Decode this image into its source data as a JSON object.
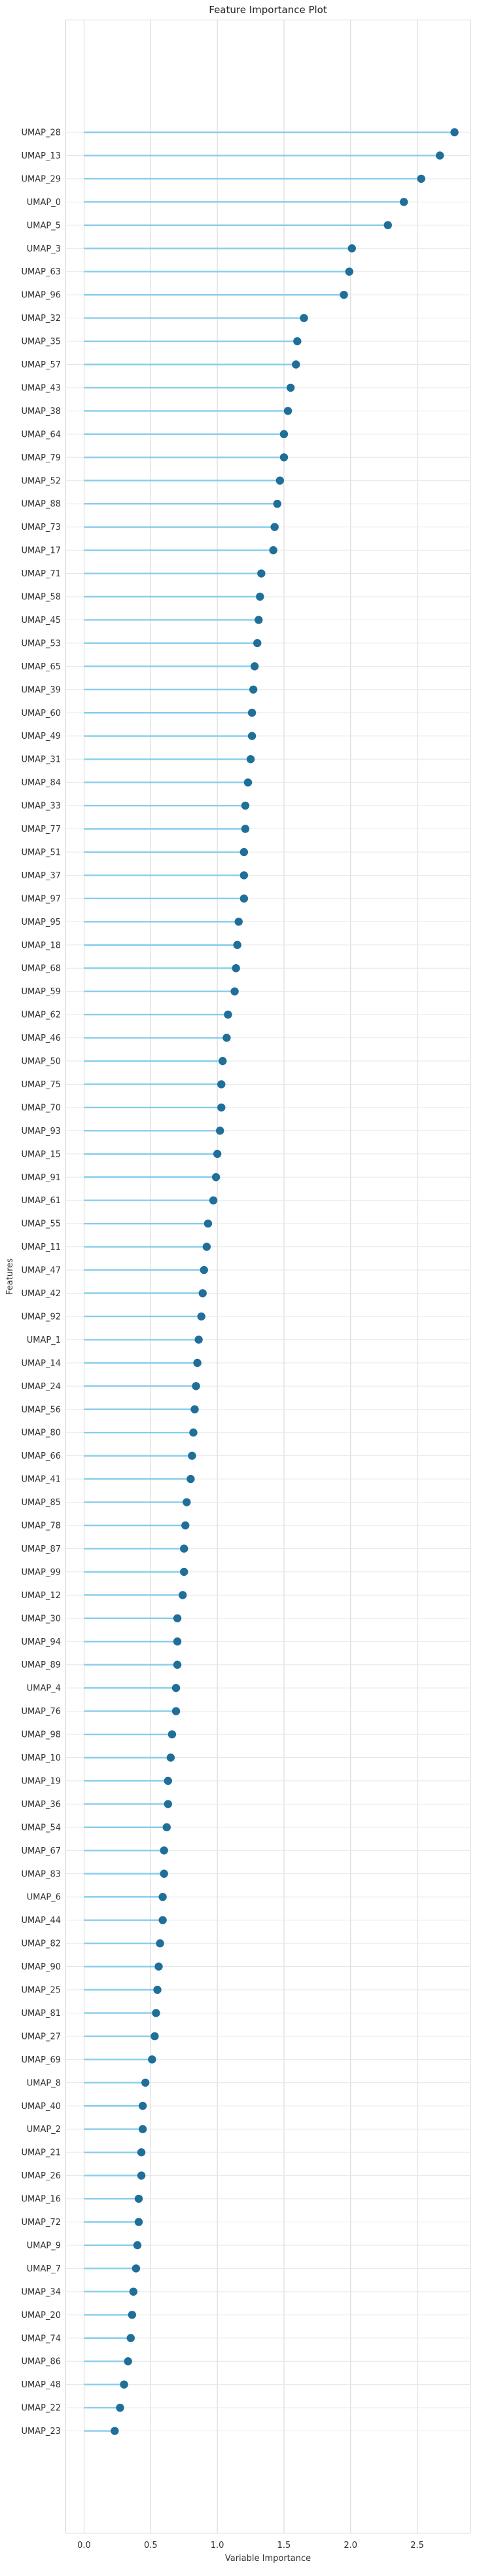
{
  "chart_data": {
    "type": "lollipop",
    "title": "Feature Importance Plot",
    "xlabel": "Variable Importance",
    "ylabel": "Features",
    "xlim": [
      -0.14,
      2.9
    ],
    "xticks": [
      "0.0",
      "0.5",
      "1.0",
      "1.5",
      "2.0",
      "2.5"
    ],
    "xtick_values": [
      0,
      0.5,
      1.0,
      1.5,
      2.0,
      2.5
    ],
    "grid": true,
    "line_color": "#87ceeb",
    "marker_color": "#1f6f99",
    "features": [
      {
        "name": "UMAP_28",
        "value": 2.78
      },
      {
        "name": "UMAP_13",
        "value": 2.67
      },
      {
        "name": "UMAP_29",
        "value": 2.53
      },
      {
        "name": "UMAP_0",
        "value": 2.4
      },
      {
        "name": "UMAP_5",
        "value": 2.28
      },
      {
        "name": "UMAP_3",
        "value": 2.01
      },
      {
        "name": "UMAP_63",
        "value": 1.99
      },
      {
        "name": "UMAP_96",
        "value": 1.95
      },
      {
        "name": "UMAP_32",
        "value": 1.65
      },
      {
        "name": "UMAP_35",
        "value": 1.6
      },
      {
        "name": "UMAP_57",
        "value": 1.59
      },
      {
        "name": "UMAP_43",
        "value": 1.55
      },
      {
        "name": "UMAP_38",
        "value": 1.53
      },
      {
        "name": "UMAP_64",
        "value": 1.5
      },
      {
        "name": "UMAP_79",
        "value": 1.5
      },
      {
        "name": "UMAP_52",
        "value": 1.47
      },
      {
        "name": "UMAP_88",
        "value": 1.45
      },
      {
        "name": "UMAP_73",
        "value": 1.43
      },
      {
        "name": "UMAP_17",
        "value": 1.42
      },
      {
        "name": "UMAP_71",
        "value": 1.33
      },
      {
        "name": "UMAP_58",
        "value": 1.32
      },
      {
        "name": "UMAP_45",
        "value": 1.31
      },
      {
        "name": "UMAP_53",
        "value": 1.3
      },
      {
        "name": "UMAP_65",
        "value": 1.28
      },
      {
        "name": "UMAP_39",
        "value": 1.27
      },
      {
        "name": "UMAP_60",
        "value": 1.26
      },
      {
        "name": "UMAP_49",
        "value": 1.26
      },
      {
        "name": "UMAP_31",
        "value": 1.25
      },
      {
        "name": "UMAP_84",
        "value": 1.23
      },
      {
        "name": "UMAP_33",
        "value": 1.21
      },
      {
        "name": "UMAP_77",
        "value": 1.21
      },
      {
        "name": "UMAP_51",
        "value": 1.2
      },
      {
        "name": "UMAP_37",
        "value": 1.2
      },
      {
        "name": "UMAP_97",
        "value": 1.2
      },
      {
        "name": "UMAP_95",
        "value": 1.16
      },
      {
        "name": "UMAP_18",
        "value": 1.15
      },
      {
        "name": "UMAP_68",
        "value": 1.14
      },
      {
        "name": "UMAP_59",
        "value": 1.13
      },
      {
        "name": "UMAP_62",
        "value": 1.08
      },
      {
        "name": "UMAP_46",
        "value": 1.07
      },
      {
        "name": "UMAP_50",
        "value": 1.04
      },
      {
        "name": "UMAP_75",
        "value": 1.03
      },
      {
        "name": "UMAP_70",
        "value": 1.03
      },
      {
        "name": "UMAP_93",
        "value": 1.02
      },
      {
        "name": "UMAP_15",
        "value": 1.0
      },
      {
        "name": "UMAP_91",
        "value": 0.99
      },
      {
        "name": "UMAP_61",
        "value": 0.97
      },
      {
        "name": "UMAP_55",
        "value": 0.93
      },
      {
        "name": "UMAP_11",
        "value": 0.92
      },
      {
        "name": "UMAP_47",
        "value": 0.9
      },
      {
        "name": "UMAP_42",
        "value": 0.89
      },
      {
        "name": "UMAP_92",
        "value": 0.88
      },
      {
        "name": "UMAP_1",
        "value": 0.86
      },
      {
        "name": "UMAP_14",
        "value": 0.85
      },
      {
        "name": "UMAP_24",
        "value": 0.84
      },
      {
        "name": "UMAP_56",
        "value": 0.83
      },
      {
        "name": "UMAP_80",
        "value": 0.82
      },
      {
        "name": "UMAP_66",
        "value": 0.81
      },
      {
        "name": "UMAP_41",
        "value": 0.8
      },
      {
        "name": "UMAP_85",
        "value": 0.77
      },
      {
        "name": "UMAP_78",
        "value": 0.76
      },
      {
        "name": "UMAP_87",
        "value": 0.75
      },
      {
        "name": "UMAP_99",
        "value": 0.75
      },
      {
        "name": "UMAP_12",
        "value": 0.74
      },
      {
        "name": "UMAP_30",
        "value": 0.7
      },
      {
        "name": "UMAP_94",
        "value": 0.7
      },
      {
        "name": "UMAP_89",
        "value": 0.7
      },
      {
        "name": "UMAP_4",
        "value": 0.69
      },
      {
        "name": "UMAP_76",
        "value": 0.69
      },
      {
        "name": "UMAP_98",
        "value": 0.66
      },
      {
        "name": "UMAP_10",
        "value": 0.65
      },
      {
        "name": "UMAP_19",
        "value": 0.63
      },
      {
        "name": "UMAP_36",
        "value": 0.63
      },
      {
        "name": "UMAP_54",
        "value": 0.62
      },
      {
        "name": "UMAP_67",
        "value": 0.6
      },
      {
        "name": "UMAP_83",
        "value": 0.6
      },
      {
        "name": "UMAP_6",
        "value": 0.59
      },
      {
        "name": "UMAP_44",
        "value": 0.59
      },
      {
        "name": "UMAP_82",
        "value": 0.57
      },
      {
        "name": "UMAP_90",
        "value": 0.56
      },
      {
        "name": "UMAP_25",
        "value": 0.55
      },
      {
        "name": "UMAP_81",
        "value": 0.54
      },
      {
        "name": "UMAP_27",
        "value": 0.53
      },
      {
        "name": "UMAP_69",
        "value": 0.51
      },
      {
        "name": "UMAP_8",
        "value": 0.46
      },
      {
        "name": "UMAP_40",
        "value": 0.44
      },
      {
        "name": "UMAP_2",
        "value": 0.44
      },
      {
        "name": "UMAP_21",
        "value": 0.43
      },
      {
        "name": "UMAP_26",
        "value": 0.43
      },
      {
        "name": "UMAP_16",
        "value": 0.41
      },
      {
        "name": "UMAP_72",
        "value": 0.41
      },
      {
        "name": "UMAP_9",
        "value": 0.4
      },
      {
        "name": "UMAP_7",
        "value": 0.39
      },
      {
        "name": "UMAP_34",
        "value": 0.37
      },
      {
        "name": "UMAP_20",
        "value": 0.36
      },
      {
        "name": "UMAP_74",
        "value": 0.35
      },
      {
        "name": "UMAP_86",
        "value": 0.33
      },
      {
        "name": "UMAP_48",
        "value": 0.3
      },
      {
        "name": "UMAP_22",
        "value": 0.27
      },
      {
        "name": "UMAP_23",
        "value": 0.23
      }
    ]
  }
}
